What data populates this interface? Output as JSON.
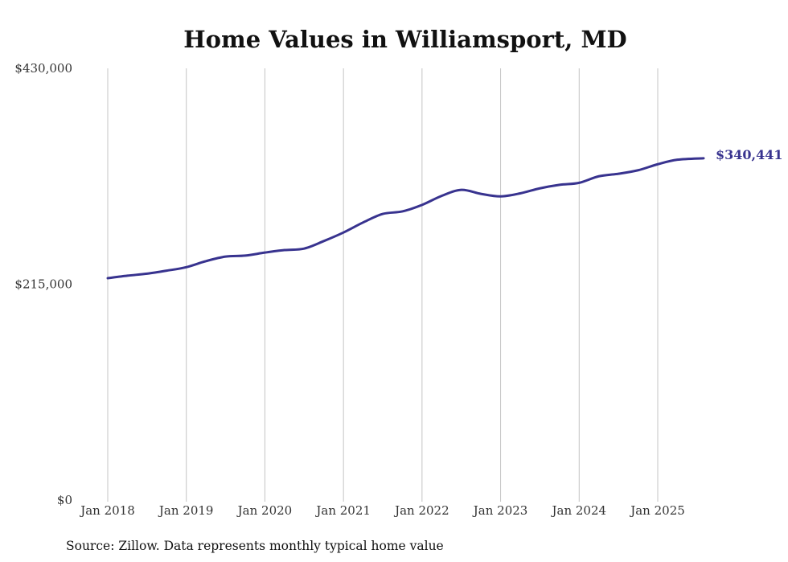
{
  "chart_data": {
    "type": "line",
    "title": "Home Values in Williamsport, MD",
    "xlabel": "",
    "ylabel": "",
    "ylim": [
      0,
      430000
    ],
    "y_ticks": [
      {
        "value": 0,
        "label": "$0"
      },
      {
        "value": 215000,
        "label": "$215,000"
      },
      {
        "value": 430000,
        "label": "$430,000"
      }
    ],
    "x_ticks": [
      {
        "year": 2018,
        "label": "Jan 2018"
      },
      {
        "year": 2019,
        "label": "Jan 2019"
      },
      {
        "year": 2020,
        "label": "Jan 2020"
      },
      {
        "year": 2021,
        "label": "Jan 2021"
      },
      {
        "year": 2022,
        "label": "Jan 2022"
      },
      {
        "year": 2023,
        "label": "Jan 2023"
      },
      {
        "year": 2024,
        "label": "Jan 2024"
      },
      {
        "year": 2025,
        "label": "Jan 2025"
      }
    ],
    "grid": "vertical",
    "series": [
      {
        "color": "#38338f",
        "end_label": "$340,441",
        "points": [
          {
            "x": "2018-01",
            "y": 221000
          },
          {
            "x": "2018-04",
            "y": 223500
          },
          {
            "x": "2018-07",
            "y": 225500
          },
          {
            "x": "2018-10",
            "y": 228500
          },
          {
            "x": "2019-01",
            "y": 232000
          },
          {
            "x": "2019-04",
            "y": 238000
          },
          {
            "x": "2019-07",
            "y": 242500
          },
          {
            "x": "2019-10",
            "y": 243500
          },
          {
            "x": "2020-01",
            "y": 246500
          },
          {
            "x": "2020-04",
            "y": 249000
          },
          {
            "x": "2020-07",
            "y": 250500
          },
          {
            "x": "2020-10",
            "y": 258000
          },
          {
            "x": "2021-01",
            "y": 266500
          },
          {
            "x": "2021-04",
            "y": 276500
          },
          {
            "x": "2021-07",
            "y": 285000
          },
          {
            "x": "2021-10",
            "y": 287500
          },
          {
            "x": "2022-01",
            "y": 294000
          },
          {
            "x": "2022-04",
            "y": 303000
          },
          {
            "x": "2022-07",
            "y": 309000
          },
          {
            "x": "2022-10",
            "y": 305000
          },
          {
            "x": "2023-01",
            "y": 302500
          },
          {
            "x": "2023-04",
            "y": 305500
          },
          {
            "x": "2023-07",
            "y": 310500
          },
          {
            "x": "2023-10",
            "y": 314000
          },
          {
            "x": "2024-01",
            "y": 316000
          },
          {
            "x": "2024-04",
            "y": 322500
          },
          {
            "x": "2024-07",
            "y": 325000
          },
          {
            "x": "2024-10",
            "y": 328500
          },
          {
            "x": "2025-01",
            "y": 334500
          },
          {
            "x": "2025-04",
            "y": 339000
          },
          {
            "x": "2025-08",
            "y": 340441
          }
        ]
      }
    ]
  },
  "source_text": "Source: Zillow. Data represents monthly typical home value"
}
